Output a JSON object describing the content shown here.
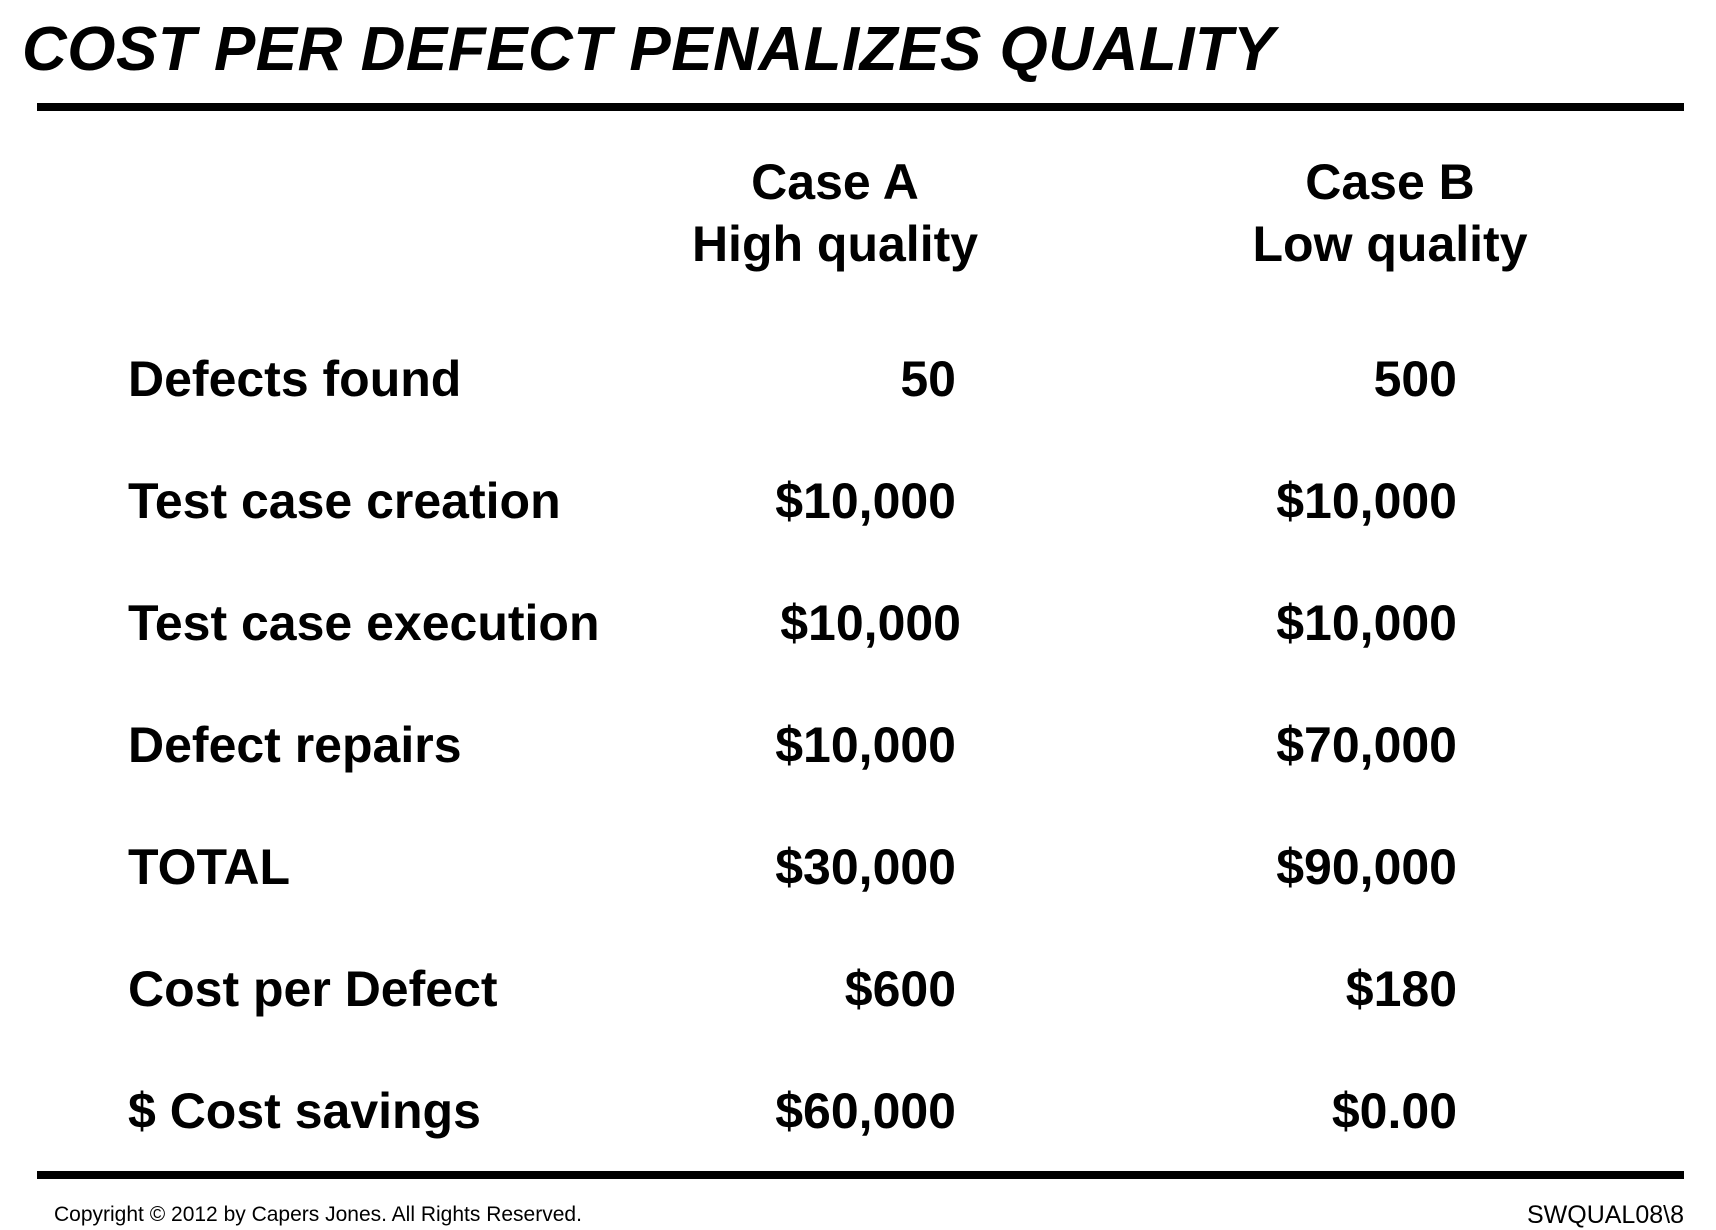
{
  "title": "COST PER DEFECT PENALIZES QUALITY",
  "columns": [
    {
      "line1": "Case A",
      "line2": "High quality"
    },
    {
      "line1": "Case B",
      "line2": "Low quality"
    }
  ],
  "rows": [
    {
      "label": "Defects found",
      "a": "50",
      "b": "500"
    },
    {
      "label": "Test case creation",
      "a": "$10,000",
      "b": "$10,000"
    },
    {
      "label": "Test case execution",
      "a": "$10,000",
      "b": "$10,000"
    },
    {
      "label": "Defect repairs",
      "a": "$10,000",
      "b": "$70,000"
    },
    {
      "label": "TOTAL",
      "a": "$30,000",
      "b": "$90,000"
    },
    {
      "label": "Cost per Defect",
      "a": "$600",
      "b": "$180"
    },
    {
      "label": "$ Cost savings",
      "a": "$60,000",
      "b": "$0.00"
    }
  ],
  "footer": {
    "copyright": "Copyright © 2012 by Capers Jones.  All Rights Reserved.",
    "slide_id": "SWQUAL08\\8"
  }
}
